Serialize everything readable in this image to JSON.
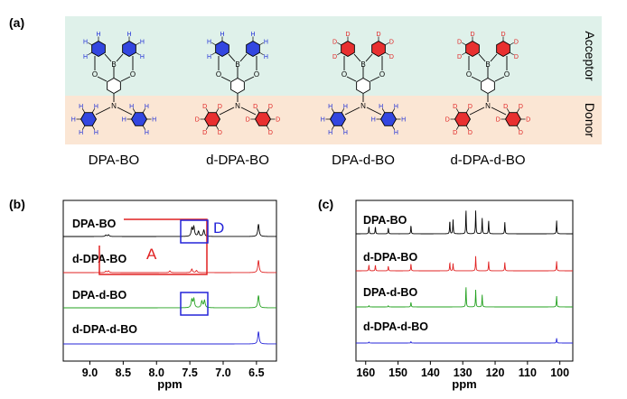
{
  "panel_a": {
    "label": "(a)",
    "band_top_label": "Acceptor",
    "band_bottom_label": "Donor",
    "band_top_color": "#dff1ea",
    "band_bottom_color": "#fbe6d4",
    "compounds": [
      {
        "name": "DPA-BO",
        "acceptor_deuterated": false,
        "donor_deuterated": false
      },
      {
        "name": "d-DPA-BO",
        "acceptor_deuterated": false,
        "donor_deuterated": true
      },
      {
        "name": "DPA-d-BO",
        "acceptor_deuterated": true,
        "donor_deuterated": false
      },
      {
        "name": "d-DPA-d-BO",
        "acceptor_deuterated": true,
        "donor_deuterated": true
      }
    ],
    "atom_labels": {
      "H": "H",
      "D": "D",
      "B": "B",
      "O": "O",
      "N": "N"
    },
    "colors": {
      "H": "#1f2fd6",
      "D": "#e02020",
      "ring_h": "#3346e0",
      "ring_d": "#e83030",
      "bond": "#000000"
    }
  },
  "chart_data": [
    {
      "type": "line",
      "panel_label": "(b)",
      "xlabel": "ppm",
      "xlim": [
        9.4,
        6.2
      ],
      "x_reversed": true,
      "x_ticks": [
        "9.0",
        "8.5",
        "8.0",
        "7.5",
        "7.0",
        "6.5"
      ],
      "x_tick_values": [
        9.0,
        8.5,
        8.0,
        7.5,
        7.0,
        6.5
      ],
      "series": [
        {
          "name": "DPA-BO",
          "color": "#000000",
          "peaks": [
            [
              8.76,
              0.1
            ],
            [
              8.72,
              0.12
            ],
            [
              7.47,
              0.55
            ],
            [
              7.44,
              0.65
            ],
            [
              7.37,
              0.35
            ],
            [
              7.29,
              0.45
            ],
            [
              6.47,
              0.85
            ]
          ]
        },
        {
          "name": "d-DPA-BO",
          "color": "#e02020",
          "peaks": [
            [
              8.76,
              0.1
            ],
            [
              8.72,
              0.12
            ],
            [
              7.8,
              0.12
            ],
            [
              7.47,
              0.25
            ],
            [
              7.4,
              0.15
            ],
            [
              6.47,
              0.85
            ]
          ]
        },
        {
          "name": "DPA-d-BO",
          "color": "#22a01e",
          "peaks": [
            [
              7.47,
              0.55
            ],
            [
              7.44,
              0.6
            ],
            [
              7.32,
              0.45
            ],
            [
              7.28,
              0.5
            ],
            [
              6.47,
              0.85
            ]
          ]
        },
        {
          "name": "d-DPA-d-BO",
          "color": "#2424d8",
          "peaks": [
            [
              6.47,
              0.85
            ]
          ]
        }
      ],
      "annotations": [
        {
          "text": "A",
          "color": "#e02020"
        },
        {
          "text": "D",
          "color": "#2424d8"
        }
      ]
    },
    {
      "type": "line",
      "panel_label": "(c)",
      "xlabel": "ppm",
      "xlim": [
        163,
        96
      ],
      "x_reversed": true,
      "x_ticks": [
        "160",
        "150",
        "140",
        "130",
        "120",
        "110",
        "100"
      ],
      "x_tick_values": [
        160,
        150,
        140,
        130,
        120,
        110,
        100
      ],
      "series": [
        {
          "name": "DPA-BO",
          "color": "#000000",
          "peaks": [
            [
              159,
              0.3
            ],
            [
              157,
              0.3
            ],
            [
              153,
              0.25
            ],
            [
              146,
              0.35
            ],
            [
              134,
              0.55
            ],
            [
              133,
              0.58
            ],
            [
              129,
              1.0
            ],
            [
              126,
              0.95
            ],
            [
              124,
              0.65
            ],
            [
              122,
              0.55
            ],
            [
              117,
              0.48
            ],
            [
              101,
              0.55
            ]
          ]
        },
        {
          "name": "d-DPA-BO",
          "color": "#e02020",
          "peaks": [
            [
              159,
              0.25
            ],
            [
              157,
              0.25
            ],
            [
              153,
              0.2
            ],
            [
              146,
              0.3
            ],
            [
              134,
              0.35
            ],
            [
              133,
              0.3
            ],
            [
              126,
              0.6
            ],
            [
              122,
              0.4
            ],
            [
              117,
              0.35
            ],
            [
              101,
              0.4
            ]
          ]
        },
        {
          "name": "DPA-d-BO",
          "color": "#22a01e",
          "peaks": [
            [
              159,
              0.05
            ],
            [
              153,
              0.05
            ],
            [
              146,
              0.2
            ],
            [
              129,
              0.85
            ],
            [
              126,
              0.7
            ],
            [
              124,
              0.5
            ],
            [
              101,
              0.45
            ]
          ]
        },
        {
          "name": "d-DPA-d-BO",
          "color": "#2424d8",
          "peaks": [
            [
              159,
              0.04
            ],
            [
              146,
              0.06
            ],
            [
              101,
              0.2
            ]
          ]
        }
      ]
    }
  ]
}
